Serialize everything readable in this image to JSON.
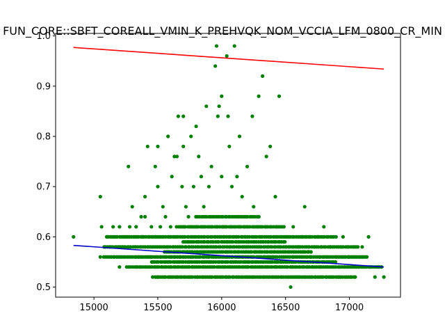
{
  "chart_data": {
    "type": "scatter",
    "title": "FUN_CORE::SBFT_COREALL_VMIN_K_PREHVQK_NOM_VCCIA_LFM_0800_CR_MIN",
    "xlabel": "",
    "ylabel": "",
    "xlim": [
      14700,
      17400
    ],
    "ylim": [
      0.48,
      1.005
    ],
    "grid": false,
    "x_ticks": [
      15000,
      15500,
      16000,
      16500,
      17000
    ],
    "y_ticks": [
      0.5,
      0.6,
      0.7,
      0.8,
      0.9,
      1.0
    ],
    "y_tick_labels": [
      "0.5",
      "0.6",
      "0.7",
      "0.8",
      "0.9",
      "1.0"
    ],
    "point_color": "#008000",
    "series": [
      {
        "kind": "points",
        "points": [
          [
            14840,
            0.6
          ],
          [
            15050,
            0.68
          ],
          [
            15050,
            0.56
          ],
          [
            15060,
            0.62
          ],
          [
            15080,
            0.58
          ],
          [
            15100,
            0.6
          ],
          [
            15120,
            0.58
          ],
          [
            15150,
            0.62
          ],
          [
            15180,
            0.6
          ],
          [
            15200,
            0.54
          ],
          [
            15200,
            0.62
          ],
          [
            15220,
            0.58
          ],
          [
            15250,
            0.6
          ],
          [
            15270,
            0.74
          ],
          [
            15280,
            0.62
          ],
          [
            15300,
            0.66
          ],
          [
            15320,
            0.6
          ],
          [
            15330,
            0.62
          ],
          [
            15350,
            0.56
          ],
          [
            15370,
            0.64
          ],
          [
            15380,
            0.6
          ],
          [
            15400,
            0.64
          ],
          [
            15400,
            0.68
          ],
          [
            15420,
            0.78
          ],
          [
            15440,
            0.56
          ],
          [
            15450,
            0.62
          ],
          [
            15460,
            0.52
          ],
          [
            15480,
            0.6
          ],
          [
            15480,
            0.74
          ],
          [
            15500,
            0.7
          ],
          [
            15500,
            0.78
          ],
          [
            15500,
            0.52
          ],
          [
            15520,
            0.62
          ],
          [
            15540,
            0.66
          ],
          [
            15560,
            0.64
          ],
          [
            15580,
            0.8
          ],
          [
            15590,
            0.6
          ],
          [
            15600,
            0.62
          ],
          [
            15610,
            0.72
          ],
          [
            15630,
            0.76
          ],
          [
            15650,
            0.76
          ],
          [
            15660,
            0.84
          ],
          [
            15680,
            0.62
          ],
          [
            15690,
            0.7
          ],
          [
            15700,
            0.84
          ],
          [
            15700,
            0.78
          ],
          [
            15720,
            0.66
          ],
          [
            15740,
            0.64
          ],
          [
            15760,
            0.8
          ],
          [
            15780,
            0.7
          ],
          [
            15800,
            0.82
          ],
          [
            15800,
            0.62
          ],
          [
            15820,
            0.76
          ],
          [
            15840,
            0.72
          ],
          [
            15860,
            0.66
          ],
          [
            15880,
            0.86
          ],
          [
            15900,
            0.7
          ],
          [
            15920,
            0.74
          ],
          [
            15950,
            0.94
          ],
          [
            15960,
            0.98
          ],
          [
            15970,
            0.84
          ],
          [
            15980,
            0.86
          ],
          [
            16000,
            0.88
          ],
          [
            16000,
            0.72
          ],
          [
            16020,
            0.62
          ],
          [
            16040,
            0.96
          ],
          [
            16050,
            0.84
          ],
          [
            16060,
            0.78
          ],
          [
            16080,
            0.7
          ],
          [
            16100,
            0.98
          ],
          [
            16120,
            0.72
          ],
          [
            16140,
            0.8
          ],
          [
            16160,
            0.68
          ],
          [
            16180,
            0.64
          ],
          [
            16200,
            0.74
          ],
          [
            16240,
            0.84
          ],
          [
            16250,
            0.66
          ],
          [
            16290,
            0.88
          ],
          [
            16320,
            0.92
          ],
          [
            16350,
            0.76
          ],
          [
            16380,
            0.78
          ],
          [
            16420,
            0.68
          ],
          [
            16450,
            0.88
          ],
          [
            16500,
            0.6
          ],
          [
            16540,
            0.5
          ],
          [
            16560,
            0.62
          ],
          [
            16600,
            0.58
          ],
          [
            16650,
            0.66
          ],
          [
            16700,
            0.56
          ],
          [
            16750,
            0.6
          ],
          [
            16800,
            0.62
          ],
          [
            16850,
            0.58
          ],
          [
            16900,
            0.56
          ],
          [
            16950,
            0.6
          ],
          [
            17000,
            0.56
          ],
          [
            17050,
            0.54
          ],
          [
            17080,
            0.56
          ],
          [
            17100,
            0.58
          ],
          [
            17150,
            0.6
          ],
          [
            17200,
            0.52
          ],
          [
            17250,
            0.54
          ],
          [
            17270,
            0.52
          ]
        ],
        "bands": [
          {
            "y": 0.52,
            "x_start": 15480,
            "x_end": 17050
          },
          {
            "y": 0.54,
            "x_start": 15260,
            "x_end": 17260
          },
          {
            "y": 0.55,
            "x_start": 15450,
            "x_end": 16900
          },
          {
            "y": 0.56,
            "x_start": 15080,
            "x_end": 17140
          },
          {
            "y": 0.57,
            "x_start": 15550,
            "x_end": 16700
          },
          {
            "y": 0.58,
            "x_start": 15080,
            "x_end": 17080
          },
          {
            "y": 0.59,
            "x_start": 15700,
            "x_end": 16500
          },
          {
            "y": 0.6,
            "x_start": 15100,
            "x_end": 16900
          },
          {
            "y": 0.62,
            "x_start": 15650,
            "x_end": 16500
          },
          {
            "y": 0.64,
            "x_start": 15800,
            "x_end": 16300
          }
        ]
      }
    ],
    "fit_lines": [
      {
        "color": "#ff0000",
        "x": [
          14840,
          17270
        ],
        "y": [
          0.977,
          0.934
        ]
      },
      {
        "color": "#0000cd",
        "x": [
          14840,
          17270
        ],
        "y": [
          0.583,
          0.54
        ]
      }
    ]
  }
}
